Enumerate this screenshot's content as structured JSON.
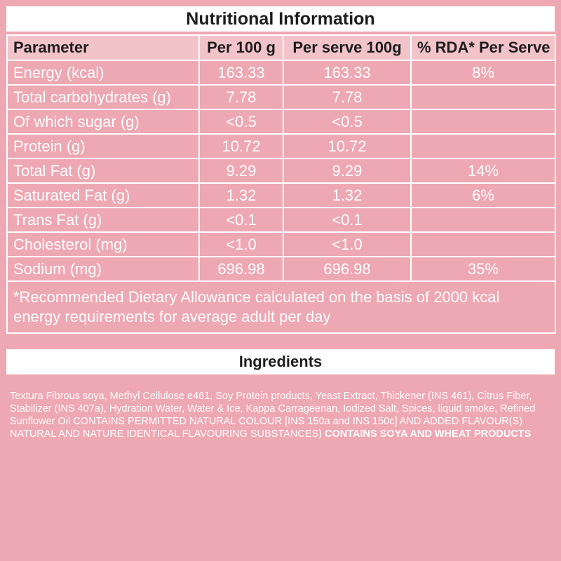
{
  "title": "Nutritional Information",
  "headers": [
    "Parameter",
    "Per 100 g",
    "Per serve 100g",
    "% RDA* Per Serve"
  ],
  "rows": [
    {
      "param": "Energy (kcal)",
      "per100": "163.33",
      "serve": "163.33",
      "rda": "8%"
    },
    {
      "param": "Total carbohydrates (g)",
      "per100": "7.78",
      "serve": "7.78",
      "rda": ""
    },
    {
      "param": "Of which sugar (g)",
      "per100": "<0.5",
      "serve": "<0.5",
      "rda": ""
    },
    {
      "param": "Protein (g)",
      "per100": "10.72",
      "serve": "10.72",
      "rda": ""
    },
    {
      "param": "Total Fat (g)",
      "per100": "9.29",
      "serve": "9.29",
      "rda": "14%"
    },
    {
      "param": "Saturated Fat (g)",
      "per100": "1.32",
      "serve": "1.32",
      "rda": "6%"
    },
    {
      "param": "Trans Fat (g)",
      "per100": "<0.1",
      "serve": "<0.1",
      "rda": ""
    },
    {
      "param": "Cholesterol  (mg)",
      "per100": "<1.0",
      "serve": "<1.0",
      "rda": ""
    },
    {
      "param": "Sodium  (mg)",
      "per100": "696.98",
      "serve": "696.98",
      "rda": "35%"
    }
  ],
  "footnote": "*Recommended Dietary Allowance calculated on the basis of 2000 kcal energy requirements for average  adult per day",
  "ingredients_title": "Ingredients",
  "ingredients_text": "Textura Fibrous soya, Methyl Cellulose e461, Soy Protein products, Yeast Extract, Thickener (INS 461), Citrus Fiber, Stabilizer (INS 407a), Hydration Water, Water & Ice, Kappa Carrageenan, Iodized Salt, Spices, liquid smoke, Refined Sunflower Oil CONTAINS PERMITTED NATURAL COLOUR [INS 150a and INS 150c] AND ADDED FLAVOUR(S) NATURAL AND NATURE IDENTICAL FLAVOURING SUBSTANCES)",
  "ingredients_bold": "CONTAINS SOYA AND WHEAT PRODUCTS"
}
